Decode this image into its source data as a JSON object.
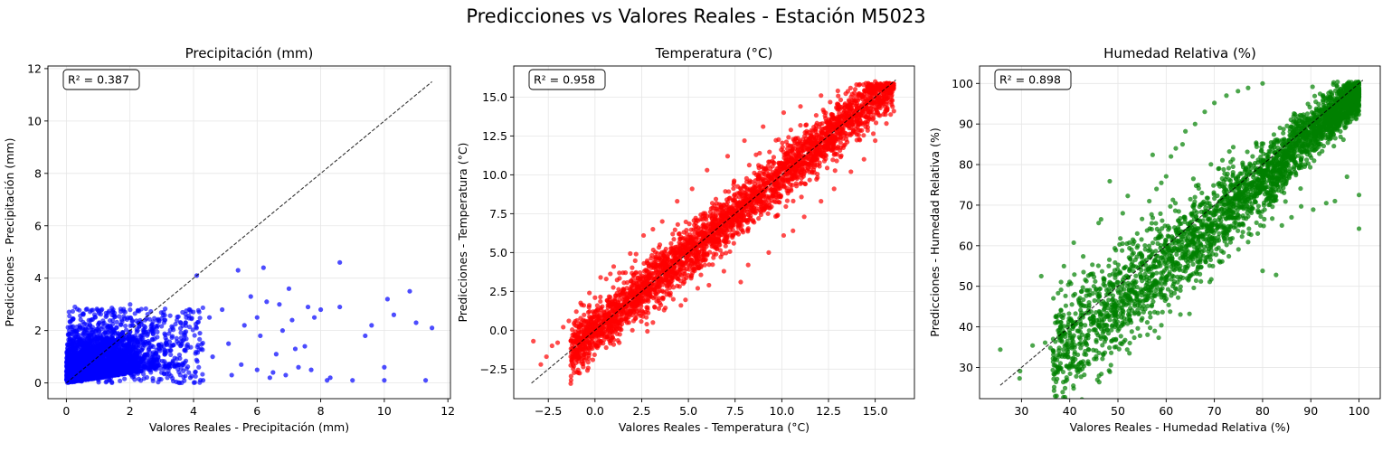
{
  "figure": {
    "title": "Predicciones vs Valores Reales - Estación M5023"
  },
  "chart_data": [
    {
      "type": "scatter",
      "title": "Precipitación (mm)",
      "xlabel": "Valores Reales - Precipitación (mm)",
      "ylabel": "Predicciones - Precipitación (mm)",
      "xlim": [
        -0.58,
        12.08
      ],
      "ylim": [
        -0.6,
        12.1
      ],
      "xticks": [
        0,
        2,
        4,
        6,
        8,
        10,
        12
      ],
      "yticks": [
        0,
        2,
        4,
        6,
        8,
        10,
        12
      ],
      "xtick_labels": [
        "0",
        "2",
        "4",
        "6",
        "8",
        "10",
        "12"
      ],
      "ytick_labels": [
        "0",
        "2",
        "4",
        "6",
        "8",
        "10",
        "12"
      ],
      "grid": true,
      "color": "#0000ff",
      "r2_label": "R² = 0.387",
      "identity_line": [
        0,
        11.5
      ],
      "points": [
        [
          4.5,
          2.5
        ],
        [
          4.6,
          1.0
        ],
        [
          4.9,
          2.8
        ],
        [
          5.1,
          1.5
        ],
        [
          5.2,
          0.3
        ],
        [
          5.4,
          4.3
        ],
        [
          5.5,
          0.7
        ],
        [
          5.6,
          2.2
        ],
        [
          5.8,
          3.3
        ],
        [
          6.0,
          0.5
        ],
        [
          6.0,
          2.5
        ],
        [
          6.1,
          1.8
        ],
        [
          6.2,
          4.4
        ],
        [
          6.3,
          3.1
        ],
        [
          6.4,
          0.2
        ],
        [
          6.5,
          0.4
        ],
        [
          6.6,
          1.1
        ],
        [
          6.7,
          3.0
        ],
        [
          6.8,
          2.0
        ],
        [
          6.9,
          0.3
        ],
        [
          7.0,
          3.6
        ],
        [
          7.1,
          2.4
        ],
        [
          7.2,
          1.3
        ],
        [
          7.3,
          0.6
        ],
        [
          7.5,
          1.4
        ],
        [
          7.6,
          2.9
        ],
        [
          7.7,
          0.5
        ],
        [
          7.8,
          2.5
        ],
        [
          8.0,
          2.8
        ],
        [
          8.2,
          0.1
        ],
        [
          8.3,
          0.2
        ],
        [
          8.6,
          4.6
        ],
        [
          8.6,
          2.9
        ],
        [
          9.0,
          0.1
        ],
        [
          9.4,
          1.8
        ],
        [
          9.6,
          2.2
        ],
        [
          10.0,
          0.6
        ],
        [
          10.0,
          0.1
        ],
        [
          10.1,
          3.2
        ],
        [
          10.3,
          2.6
        ],
        [
          10.8,
          3.5
        ],
        [
          11.0,
          2.3
        ],
        [
          11.3,
          0.1
        ],
        [
          11.5,
          2.1
        ],
        [
          4.1,
          4.1
        ],
        [
          3.9,
          0.2
        ],
        [
          4.3,
          0.1
        ],
        [
          4.2,
          1.9
        ]
      ]
    },
    {
      "type": "scatter",
      "title": "Temperatura (°C)",
      "xlabel": "Valores Reales - Temperatura (°C)",
      "ylabel": "Predicciones - Temperatura (°C)",
      "xlim": [
        -4.35,
        17.1
      ],
      "ylim": [
        -4.4,
        17.0
      ],
      "xticks": [
        -2.5,
        0.0,
        2.5,
        5.0,
        7.5,
        10.0,
        12.5,
        15.0
      ],
      "yticks": [
        -2.5,
        0.0,
        2.5,
        5.0,
        7.5,
        10.0,
        12.5,
        15.0
      ],
      "xtick_labels": [
        "−2.5",
        "0.0",
        "2.5",
        "5.0",
        "7.5",
        "10.0",
        "12.5",
        "15.0"
      ],
      "ytick_labels": [
        "−2.5",
        "0.0",
        "2.5",
        "5.0",
        "7.5",
        "10.0",
        "12.5",
        "15.0"
      ],
      "grid": true,
      "color": "#ff0000",
      "r2_label": "R² = 0.958",
      "identity_line": [
        -3.4,
        16.1
      ],
      "points": [
        [
          -3.3,
          -0.7
        ],
        [
          -2.9,
          -2.2
        ],
        [
          -2.6,
          -1.7
        ],
        [
          -2.3,
          -1.0
        ],
        [
          -2.0,
          -0.8
        ],
        [
          -1.7,
          0.2
        ],
        [
          -1.4,
          0.6
        ],
        [
          -1.2,
          -0.3
        ],
        [
          -1.0,
          1.2
        ],
        [
          -0.6,
          1.6
        ],
        [
          -0.3,
          2.4
        ],
        [
          0.0,
          2.1
        ],
        [
          0.3,
          3.4
        ],
        [
          0.6,
          3.3
        ],
        [
          1.0,
          4.1
        ],
        [
          1.5,
          3.7
        ],
        [
          2.2,
          4.9
        ],
        [
          2.6,
          6.1
        ],
        [
          3.1,
          6.5
        ],
        [
          3.6,
          7.0
        ],
        [
          4.4,
          8.3
        ],
        [
          5.2,
          9.1
        ],
        [
          6.0,
          10.3
        ],
        [
          7.1,
          11.2
        ],
        [
          8.0,
          12.2
        ],
        [
          9.0,
          13.1
        ],
        [
          10.1,
          14.0
        ],
        [
          11.0,
          14.4
        ],
        [
          12.1,
          15.1
        ],
        [
          13.0,
          15.4
        ],
        [
          14.0,
          15.8
        ],
        [
          15.0,
          16.0
        ],
        [
          15.6,
          15.9
        ],
        [
          1.3,
          -0.8
        ],
        [
          2.0,
          0.0
        ],
        [
          3.1,
          0.5
        ],
        [
          3.7,
          1.3
        ],
        [
          4.6,
          1.6
        ],
        [
          5.5,
          2.7
        ],
        [
          6.1,
          2.9
        ],
        [
          6.9,
          3.8
        ],
        [
          7.8,
          3.1
        ],
        [
          8.2,
          4.2
        ],
        [
          9.3,
          5.0
        ],
        [
          10.1,
          6.1
        ],
        [
          10.6,
          6.4
        ],
        [
          11.2,
          7.3
        ],
        [
          12.1,
          8.3
        ],
        [
          12.8,
          9.1
        ],
        [
          13.7,
          10.2
        ],
        [
          14.4,
          11.0
        ],
        [
          15.0,
          12.2
        ],
        [
          15.6,
          13.3
        ],
        [
          16.0,
          14.1
        ]
      ],
      "band": {
        "x": [
          -1.3,
          16.0
        ],
        "width": 2.6
      }
    },
    {
      "type": "scatter",
      "title": "Humedad Relativa (%)",
      "xlabel": "Valores Reales - Humedad Relativa (%)",
      "ylabel": "Predicciones - Humedad Relativa (%)",
      "xlim": [
        21.3,
        104.4
      ],
      "ylim": [
        22.3,
        104.3
      ],
      "xticks": [
        30,
        40,
        50,
        60,
        70,
        80,
        90,
        100
      ],
      "yticks": [
        30,
        40,
        50,
        60,
        70,
        80,
        90,
        100
      ],
      "xtick_labels": [
        "30",
        "40",
        "50",
        "60",
        "70",
        "80",
        "90",
        "100"
      ],
      "ytick_labels": [
        "30",
        "40",
        "50",
        "60",
        "70",
        "80",
        "90",
        "100"
      ],
      "grid": true,
      "color": "#008000",
      "r2_label": "R² = 0.898",
      "identity_line": [
        25.6,
        100.8
      ],
      "points": [
        [
          25.6,
          34.4
        ],
        [
          29.6,
          27.3
        ],
        [
          29.7,
          29.1
        ],
        [
          32.3,
          35.4
        ],
        [
          34.1,
          52.5
        ],
        [
          34.9,
          36.1
        ],
        [
          36.0,
          34.8
        ],
        [
          37.0,
          41.0
        ],
        [
          37.6,
          39.1
        ],
        [
          38.2,
          44.0
        ],
        [
          39.4,
          34.3
        ],
        [
          40.0,
          38.5
        ],
        [
          40.7,
          40.6
        ],
        [
          41.0,
          33.3
        ],
        [
          42.0,
          45.8
        ],
        [
          42.4,
          48.7
        ],
        [
          43.2,
          34.0
        ],
        [
          44.0,
          46.0
        ],
        [
          45.0,
          50.0
        ],
        [
          46.0,
          65.6
        ],
        [
          46.5,
          66.5
        ],
        [
          47.0,
          52.0
        ],
        [
          48.1,
          55.0
        ],
        [
          48.3,
          75.9
        ],
        [
          49.0,
          45.0
        ],
        [
          50.5,
          61.8
        ],
        [
          51.0,
          68.0
        ],
        [
          52.3,
          57.1
        ],
        [
          53.1,
          61.5
        ],
        [
          54.0,
          63.0
        ],
        [
          55.0,
          66.6
        ],
        [
          56.5,
          71.0
        ],
        [
          57.2,
          82.4
        ],
        [
          58.0,
          74.0
        ],
        [
          59.0,
          75.5
        ],
        [
          60.0,
          77.1
        ],
        [
          61.0,
          82.0
        ],
        [
          62.0,
          84.0
        ],
        [
          63.4,
          85.0
        ],
        [
          64.0,
          88.2
        ],
        [
          66.0,
          90.0
        ],
        [
          68.0,
          93.0
        ],
        [
          70.0,
          95.2
        ],
        [
          72.5,
          97.0
        ],
        [
          74.9,
          98.1
        ],
        [
          77.0,
          98.9
        ],
        [
          80.0,
          100.0
        ],
        [
          100.0,
          64.2
        ],
        [
          100.0,
          72.5
        ],
        [
          97.5,
          77.0
        ],
        [
          95.0,
          71.0
        ],
        [
          93.2,
          70.5
        ],
        [
          90.5,
          68.9
        ],
        [
          88.0,
          69.7
        ],
        [
          86.0,
          67.0
        ],
        [
          84.0,
          65.0
        ],
        [
          82.0,
          66.7
        ],
        [
          80.0,
          53.8
        ],
        [
          82.8,
          52.8
        ],
        [
          79.0,
          63.0
        ],
        [
          77.0,
          60.9
        ],
        [
          75.0,
          59.1
        ],
        [
          73.0,
          57.4
        ],
        [
          71.0,
          56.2
        ],
        [
          69.0,
          55.1
        ],
        [
          67.0,
          53.0
        ],
        [
          65.0,
          52.5
        ],
        [
          63.0,
          49.9
        ],
        [
          61.0,
          48.6
        ],
        [
          59.0,
          48.0
        ],
        [
          57.0,
          45.1
        ],
        [
          55.0,
          44.5
        ],
        [
          52.0,
          40.8
        ],
        [
          50.0,
          40.2
        ]
      ],
      "band": {
        "x": [
          36.5,
          100.0
        ],
        "width": 14
      }
    }
  ]
}
